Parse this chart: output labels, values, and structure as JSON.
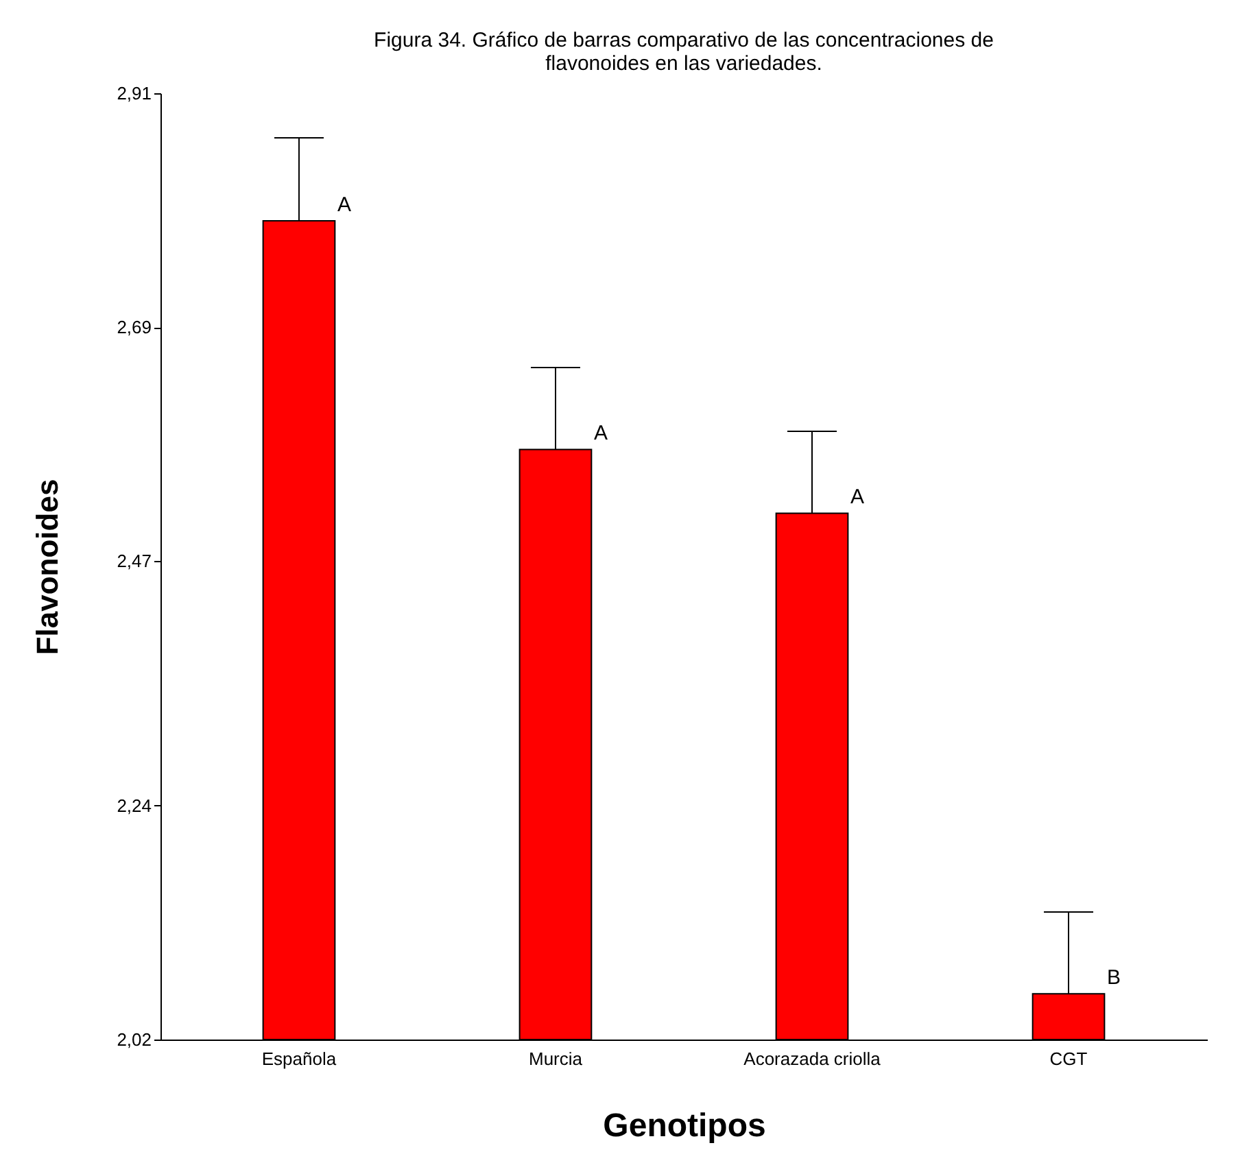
{
  "chart_data": {
    "type": "bar",
    "title": "Figura 34. Gráfico de barras comparativo de las concentraciones de flavonoides en las variedades.",
    "xlabel": "Genotipos",
    "ylabel": "Flavonoides",
    "categories": [
      "Española",
      "Murcia",
      "Acorazada criolla",
      "CGT"
    ],
    "values": [
      2.79,
      2.575,
      2.515,
      2.063
    ],
    "errors": [
      [
        2.79,
        2.868
      ],
      [
        2.575,
        2.652
      ],
      [
        2.515,
        2.592
      ],
      [
        2.063,
        2.14
      ]
    ],
    "color": "#ff0000",
    "ylim": [
      2.02,
      2.91
    ],
    "yticks": [
      {
        "value": 2.02,
        "label": "2,02"
      },
      {
        "value": 2.24,
        "label": "2,24"
      },
      {
        "value": 2.47,
        "label": "2,47"
      },
      {
        "value": 2.69,
        "label": "2,69"
      },
      {
        "value": 2.91,
        "label": "2,91"
      }
    ],
    "annotations": [
      {
        "text": "A",
        "x": "Española",
        "y": 2.79
      },
      {
        "text": "A",
        "x": "Murcia",
        "y": 2.575
      },
      {
        "text": "A",
        "x": "Acorazada criolla",
        "y": 2.515
      },
      {
        "text": "B",
        "x": "CGT",
        "y": 2.063
      }
    ],
    "grid": false
  }
}
